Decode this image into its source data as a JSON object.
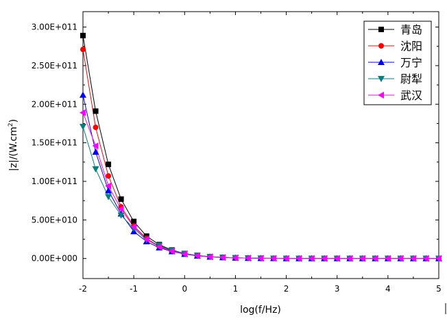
{
  "chart_data": {
    "type": "line",
    "xlabel": "log(f/Hz)",
    "ylabel": "|z|/(W.cm",
    "ylabel_sup": "2",
    "ylabel_close": ")",
    "xlim": [
      -2,
      5
    ],
    "ylim": [
      -26000000000.0,
      320000000000.0
    ],
    "x_ticks": [
      -2,
      -1,
      0,
      1,
      2,
      3,
      4,
      5
    ],
    "x_tick_labels": [
      "-2",
      "-1",
      "0",
      "1",
      "2",
      "3",
      "4",
      "5"
    ],
    "y_ticks": [
      0,
      50000000000.0,
      100000000000.0,
      150000000000.0,
      200000000000.0,
      250000000000.0,
      300000000000.0
    ],
    "y_tick_labels": [
      "0.00E+000",
      "5.00E+010",
      "1.00E+011",
      "1.50E+011",
      "2.00E+011",
      "2.50E+011",
      "3.00E+011"
    ],
    "legend_position": "top-right",
    "x": [
      -2,
      -1.75,
      -1.5,
      -1.25,
      -1,
      -0.75,
      -0.5,
      -0.25,
      0,
      0.25,
      0.5,
      0.75,
      1,
      1.25,
      1.5,
      1.75,
      2,
      2.25,
      2.5,
      2.75,
      3,
      3.25,
      3.5,
      3.75,
      4,
      4.25,
      4.5,
      4.75,
      5
    ],
    "series": [
      {
        "name": "青岛",
        "color": "#000000",
        "marker": "square",
        "values": [
          289000000000.0,
          191000000000.0,
          122000000000.0,
          77000000000.0,
          48000000000.0,
          29000000000.0,
          18000000000.0,
          11000000000.0,
          6500000000.0,
          4000000000.0,
          2400000000.0,
          1500000000.0,
          900000000.0,
          500000000.0,
          300000000.0,
          200000000.0,
          100000000.0,
          100000000.0,
          100000000.0,
          100000000.0,
          100000000.0,
          100000000.0,
          100000000.0,
          100000000.0,
          100000000.0,
          100000000.0,
          100000000.0,
          100000000.0,
          100000000.0
        ]
      },
      {
        "name": "沈阳",
        "color": "#ff0000",
        "marker": "circle",
        "values": [
          271000000000.0,
          170000000000.0,
          107000000000.0,
          67000000000.0,
          42000000000.0,
          26000000000.0,
          16000000000.0,
          10000000000.0,
          6000000000.0,
          3700000000.0,
          2200000000.0,
          1400000000.0,
          800000000.0,
          500000000.0,
          300000000.0,
          200000000.0,
          100000000.0,
          100000000.0,
          100000000.0,
          100000000.0,
          100000000.0,
          100000000.0,
          100000000.0,
          100000000.0,
          100000000.0,
          100000000.0,
          100000000.0,
          100000000.0,
          100000000.0
        ]
      },
      {
        "name": "万宁",
        "color": "#0000ff",
        "marker": "triangle-up",
        "values": [
          212000000000.0,
          138000000000.0,
          88000000000.0,
          58000000000.0,
          35000000000.0,
          22000000000.0,
          14000000000.0,
          9000000000.0,
          5600000000.0,
          3400000000.0,
          2100000000.0,
          1300000000.0,
          800000000.0,
          500000000.0,
          300000000.0,
          200000000.0,
          100000000.0,
          100000000.0,
          100000000.0,
          100000000.0,
          100000000.0,
          100000000.0,
          100000000.0,
          100000000.0,
          100000000.0,
          100000000.0,
          100000000.0,
          100000000.0,
          100000000.0
        ]
      },
      {
        "name": "尉犁",
        "color": "#008080",
        "marker": "triangle-down",
        "values": [
          171000000000.0,
          116000000000.0,
          80000000000.0,
          56000000000.0,
          39000000000.0,
          24000000000.0,
          17000000000.0,
          10500000000.0,
          6400000000.0,
          3900000000.0,
          2300000000.0,
          1400000000.0,
          900000000.0,
          500000000.0,
          300000000.0,
          200000000.0,
          100000000.0,
          100000000.0,
          100000000.0,
          100000000.0,
          100000000.0,
          100000000.0,
          100000000.0,
          100000000.0,
          100000000.0,
          100000000.0,
          100000000.0,
          100000000.0,
          100000000.0
        ]
      },
      {
        "name": "武汉",
        "color": "#ff00ff",
        "marker": "triangle-left",
        "values": [
          189000000000.0,
          146000000000.0,
          94000000000.0,
          64000000000.0,
          41000000000.0,
          25000000000.0,
          15000000000.0,
          9500000000.0,
          5800000000.0,
          3600000000.0,
          2200000000.0,
          1300000000.0,
          800000000.0,
          500000000.0,
          300000000.0,
          200000000.0,
          100000000.0,
          100000000.0,
          100000000.0,
          100000000.0,
          100000000.0,
          100000000.0,
          100000000.0,
          100000000.0,
          100000000.0,
          100000000.0,
          100000000.0,
          100000000.0,
          100000000.0
        ]
      }
    ]
  }
}
